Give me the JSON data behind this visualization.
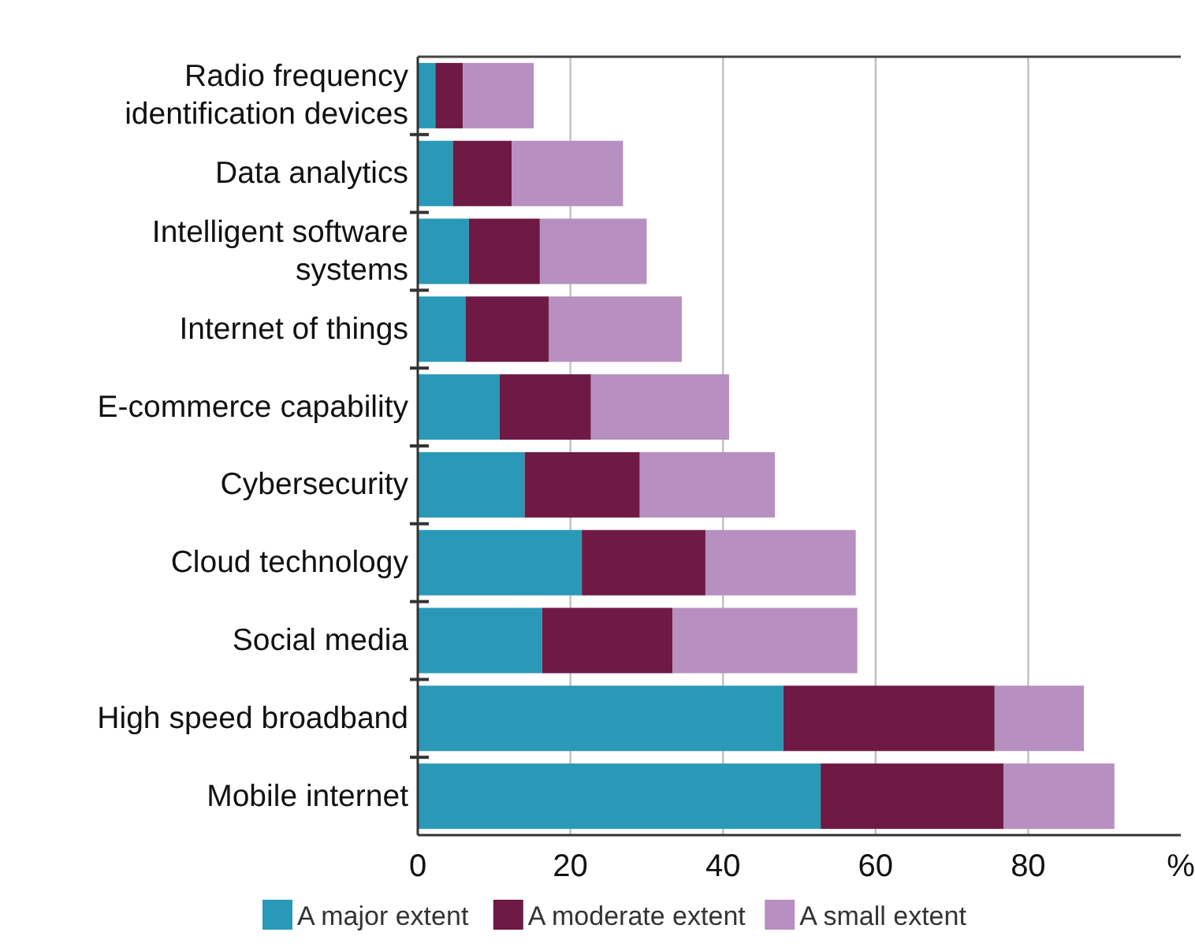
{
  "chart_data": {
    "type": "bar",
    "orientation": "horizontal",
    "stacked": true,
    "categories": [
      "Radio frequency identification devices",
      "Data analytics",
      "Intelligent software systems",
      "Internet of things",
      "E-commerce capability",
      "Cybersecurity",
      "Cloud technology",
      "Social media",
      "High speed broadband",
      "Mobile internet"
    ],
    "series": [
      {
        "name": "A major extent",
        "color": "#2a99b8",
        "values": [
          2.3,
          4.6,
          6.7,
          6.3,
          10.7,
          14.0,
          21.5,
          16.3,
          47.9,
          52.8
        ]
      },
      {
        "name": "A moderate extent",
        "color": "#6e1a45",
        "values": [
          3.6,
          7.7,
          9.3,
          10.9,
          12.0,
          15.1,
          16.2,
          17.1,
          27.7,
          24.0
        ]
      },
      {
        "name": "A small extent",
        "color": "#b78fc0",
        "values": [
          9.3,
          14.6,
          14.0,
          17.4,
          18.1,
          17.7,
          19.7,
          24.2,
          11.7,
          14.5
        ]
      }
    ],
    "xlim": [
      0,
      100
    ],
    "xticks": [
      0,
      20,
      40,
      60,
      80,
      {
        "value": 100,
        "label": "%"
      }
    ],
    "grid": "x",
    "legend": "bottom"
  }
}
